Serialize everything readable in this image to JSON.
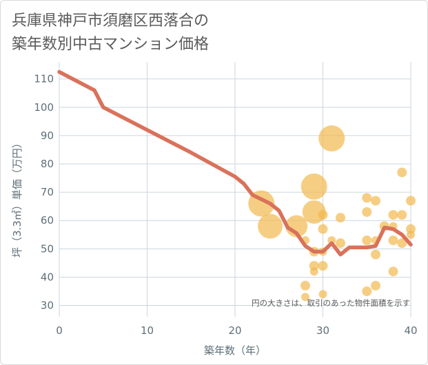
{
  "title_lines": [
    "兵庫県神戸市須磨区西落合の",
    "築年数別中古マンション価格"
  ],
  "chart_data": {
    "type": "scatter",
    "title": "兵庫県神戸市須磨区西落合の築年数別中古マンション価格",
    "xlabel": "築年数（年）",
    "ylabel": "坪（3.3㎡）単価（万円）",
    "xlim": [
      0,
      40
    ],
    "ylim": [
      26,
      116
    ],
    "xticks": [
      0,
      10,
      20,
      30,
      40
    ],
    "yticks": [
      30,
      40,
      50,
      60,
      70,
      80,
      90,
      100,
      110
    ],
    "grid": true,
    "note": "円の大きさは、取引のあった物件面積を示す",
    "colors": {
      "line": "#d9725a",
      "bubble": "#f2b94f",
      "grid": "#ccd6dc"
    },
    "line_series": {
      "x": [
        0,
        4,
        5,
        10,
        15,
        20,
        21,
        22,
        23,
        24,
        25,
        26,
        27,
        28,
        29,
        30,
        31,
        32,
        33,
        34,
        35,
        36,
        37,
        38,
        39,
        40
      ],
      "y": [
        112.5,
        106,
        100,
        92,
        84,
        75.5,
        73,
        69,
        67.5,
        66,
        63.5,
        57.5,
        55.5,
        51,
        49,
        49,
        52,
        48,
        50.5,
        50.5,
        50.5,
        51,
        57.5,
        57,
        55,
        51.5
      ]
    },
    "bubbles": [
      {
        "x": 23,
        "y": 66,
        "s": 19
      },
      {
        "x": 24,
        "y": 58,
        "s": 18
      },
      {
        "x": 27,
        "y": 58,
        "s": 16
      },
      {
        "x": 29,
        "y": 72,
        "s": 19
      },
      {
        "x": 29,
        "y": 63,
        "s": 17
      },
      {
        "x": 31,
        "y": 89,
        "s": 19
      },
      {
        "x": 28,
        "y": 53,
        "s": 6
      },
      {
        "x": 28,
        "y": 37,
        "s": 7
      },
      {
        "x": 28,
        "y": 33,
        "s": 6
      },
      {
        "x": 29,
        "y": 49,
        "s": 7
      },
      {
        "x": 29,
        "y": 44,
        "s": 7
      },
      {
        "x": 29,
        "y": 42,
        "s": 6
      },
      {
        "x": 30,
        "y": 62,
        "s": 7
      },
      {
        "x": 30,
        "y": 57,
        "s": 7
      },
      {
        "x": 30,
        "y": 49,
        "s": 6
      },
      {
        "x": 30,
        "y": 44,
        "s": 7
      },
      {
        "x": 30,
        "y": 34,
        "s": 6
      },
      {
        "x": 31,
        "y": 53,
        "s": 6
      },
      {
        "x": 32,
        "y": 61,
        "s": 7
      },
      {
        "x": 32,
        "y": 52,
        "s": 7
      },
      {
        "x": 35,
        "y": 68,
        "s": 7
      },
      {
        "x": 35,
        "y": 63,
        "s": 7
      },
      {
        "x": 35,
        "y": 53,
        "s": 7
      },
      {
        "x": 35,
        "y": 35,
        "s": 7
      },
      {
        "x": 36,
        "y": 67,
        "s": 7
      },
      {
        "x": 36,
        "y": 53,
        "s": 6
      },
      {
        "x": 36,
        "y": 48,
        "s": 7
      },
      {
        "x": 36,
        "y": 37,
        "s": 7
      },
      {
        "x": 37,
        "y": 58,
        "s": 7
      },
      {
        "x": 38,
        "y": 62,
        "s": 7
      },
      {
        "x": 38,
        "y": 58,
        "s": 6
      },
      {
        "x": 38,
        "y": 53,
        "s": 7
      },
      {
        "x": 38,
        "y": 42,
        "s": 7
      },
      {
        "x": 39,
        "y": 77,
        "s": 7
      },
      {
        "x": 39,
        "y": 62,
        "s": 7
      },
      {
        "x": 39,
        "y": 52,
        "s": 7
      },
      {
        "x": 40,
        "y": 67,
        "s": 7
      },
      {
        "x": 40,
        "y": 57,
        "s": 7
      },
      {
        "x": 40,
        "y": 55,
        "s": 6
      }
    ]
  }
}
